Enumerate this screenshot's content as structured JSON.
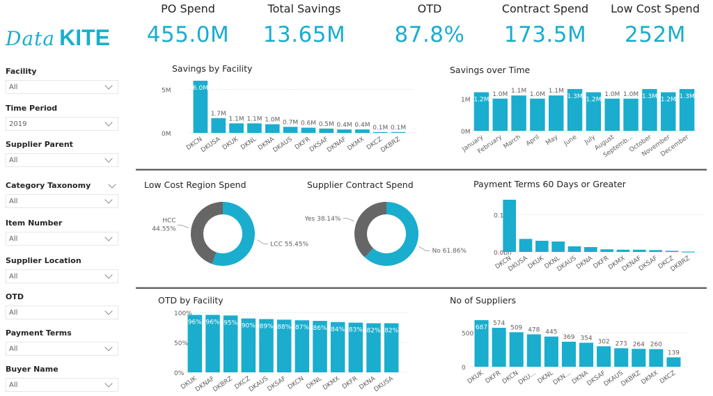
{
  "logo": {
    "script": "Data",
    "bold": "KITE",
    "color": "#1aadce"
  },
  "colors": {
    "accent": "#1aadce",
    "secondary": "#666666",
    "text": "#252423",
    "axis": "#605e5c"
  },
  "kpis": [
    {
      "label": "PO Spend",
      "value": "455.0M"
    },
    {
      "label": "Total Savings",
      "value": "13.65M"
    },
    {
      "label": "OTD",
      "value": "87.8%"
    },
    {
      "label": "Contract Spend",
      "value": "173.5M"
    },
    {
      "label": "Low Cost Spend",
      "value": "252M"
    }
  ],
  "slicers": [
    {
      "label": "Facility",
      "value": "All"
    },
    {
      "label": "Time Period",
      "value": "2019"
    },
    {
      "label": "Supplier Parent",
      "value": "All"
    },
    {
      "label": "Category Taxonomy",
      "value": "All",
      "header_chevron": true
    },
    {
      "label": "Item Number",
      "value": "All"
    },
    {
      "label": "Supplier Location",
      "value": "All"
    },
    {
      "label": "OTD",
      "value": "All"
    },
    {
      "label": "Payment Terms",
      "value": "All"
    },
    {
      "label": "Buyer Name",
      "value": "All"
    }
  ],
  "chart_data": [
    {
      "id": "savings_by_facility",
      "type": "bar",
      "title": "Savings by Facility",
      "categories": [
        "DKCN",
        "DKUSA",
        "DKUK",
        "DKNL",
        "DKNA",
        "DKAUS",
        "DKFR",
        "DKSAF",
        "DKNAF",
        "DKMX",
        "DKCZ",
        "DKBRZ"
      ],
      "values": [
        6.0,
        1.7,
        1.1,
        1.1,
        1.0,
        0.7,
        0.6,
        0.5,
        0.4,
        0.4,
        0.1,
        0.1
      ],
      "data_labels": [
        "6.0M",
        "1.7M",
        "1.1M",
        "1.1M",
        "1.0M",
        "0.7M",
        "0.6M",
        "0.5M",
        "0.4M",
        "0.4M",
        "0.1M",
        "0.1M"
      ],
      "yticks": [
        0,
        5
      ],
      "ytick_labels": [
        "0M",
        "5M"
      ],
      "ylim": [
        0,
        6.0
      ],
      "unit": "M",
      "grid": true
    },
    {
      "id": "savings_over_time",
      "type": "bar",
      "title": "Savings over Time",
      "categories": [
        "January",
        "February",
        "March",
        "April",
        "May",
        "June",
        "July",
        "August",
        "Septemb...",
        "October",
        "November",
        "December"
      ],
      "values": [
        1.2,
        1.0,
        1.1,
        1.0,
        1.1,
        1.3,
        1.2,
        1.0,
        1.0,
        1.3,
        1.2,
        1.3
      ],
      "data_labels": [
        "1.2M",
        "1.0M",
        "1.1M",
        "1.0M",
        "1.1M",
        "1.3M",
        "1.2M",
        "1.0M",
        "1.0M",
        "1.3M",
        "1.2M",
        "1.3M"
      ],
      "yticks": [
        0,
        1
      ],
      "ytick_labels": [
        "0M",
        "1M"
      ],
      "ylim": [
        0,
        1.32
      ],
      "unit": "M",
      "grid": true
    },
    {
      "id": "low_cost_region_spend",
      "type": "pie",
      "donut": true,
      "title": "Low Cost Region Spend",
      "slices": [
        {
          "label": "LCC",
          "value": 55.45,
          "display": "LCC 55.45%",
          "color": "#1aadce"
        },
        {
          "label": "HCC",
          "value": 44.55,
          "display": "HCC 44.55%",
          "color": "#666666"
        }
      ]
    },
    {
      "id": "supplier_contract_spend",
      "type": "pie",
      "donut": true,
      "title": "Supplier Contract Spend",
      "slices": [
        {
          "label": "No",
          "value": 61.86,
          "display": "No 61.86%",
          "color": "#1aadce"
        },
        {
          "label": "Yes",
          "value": 38.14,
          "display": "Yes 38.14%",
          "color": "#666666"
        }
      ]
    },
    {
      "id": "payment_terms_60",
      "type": "bar",
      "title": "Payment Terms 60 Days or Greater",
      "categories": [
        "DKCN",
        "DKUSA",
        "DKUK",
        "DKNL",
        "DKAUS",
        "DKNA",
        "DKFR",
        "DKMX",
        "DKNAF",
        "DKSAF",
        "DKCZ",
        "DKBRZ"
      ],
      "values": [
        0.14,
        0.035,
        0.03,
        0.028,
        0.015,
        0.013,
        0.007,
        0.006,
        0.006,
        0.005,
        0.003,
        0.001
      ],
      "yticks": [
        0.0,
        0.1
      ],
      "ytick_labels": [
        "0.0bn",
        "0.1bn"
      ],
      "ylim": [
        0,
        0.14
      ],
      "unit": "bn",
      "grid": true
    },
    {
      "id": "otd_by_facility",
      "type": "bar",
      "title": "OTD by Facility",
      "categories": [
        "DKUK",
        "DKNAF",
        "DKBRZ",
        "DKCZ",
        "DKAUS",
        "DKSAF",
        "DKCN",
        "DKNL",
        "DKMX",
        "DKFR",
        "DKNA",
        "DKUSA"
      ],
      "values": [
        96,
        96,
        95,
        90,
        89,
        88,
        87,
        86,
        84,
        83,
        82,
        82
      ],
      "data_labels": [
        "96%",
        "96%",
        "95%",
        "90%",
        "89%",
        "88%",
        "87%",
        "86%",
        "84%",
        "83%",
        "82%",
        "82%"
      ],
      "yticks": [
        0,
        50,
        100
      ],
      "ytick_labels": [
        "0%",
        "50%",
        "100%"
      ],
      "ylim": [
        0,
        100
      ],
      "unit": "%",
      "grid": true
    },
    {
      "id": "no_of_suppliers",
      "type": "bar",
      "title": "No of Suppliers",
      "categories": [
        "DKUK",
        "DKFR",
        "DKCN",
        "DKU...",
        "DKNL",
        "DKN...",
        "DKNA",
        "DKSAF",
        "DKAUS",
        "DKBRZ",
        "DKMX",
        "DKCZ"
      ],
      "values": [
        687,
        574,
        509,
        478,
        445,
        369,
        354,
        302,
        273,
        264,
        260,
        139
      ],
      "data_labels": [
        "687",
        "574",
        "509",
        "478",
        "445",
        "369",
        "354",
        "302",
        "273",
        "264",
        "260",
        "139"
      ],
      "yticks": [
        0,
        500
      ],
      "ytick_labels": [
        "0",
        "500"
      ],
      "ylim": [
        0,
        687
      ],
      "grid": true
    }
  ]
}
